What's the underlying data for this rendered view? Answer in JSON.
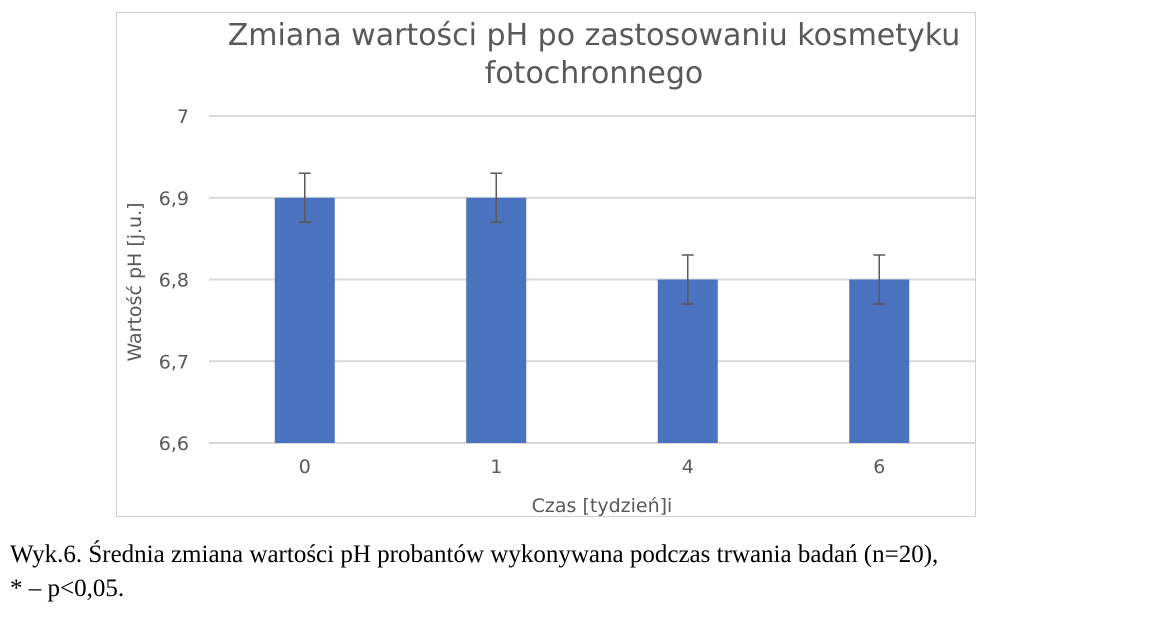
{
  "chart_data": {
    "type": "bar",
    "title_lines": [
      "Zmiana wartości pH po zastosowaniu kosmetyku",
      "fotochronnego"
    ],
    "xlabel": "Czas [tydzień]i",
    "ylabel": "Wartość pH [j.u.]",
    "categories": [
      "0",
      "1",
      "4",
      "6"
    ],
    "values": [
      6.9,
      6.9,
      6.8,
      6.8
    ],
    "error": [
      0.03,
      0.03,
      0.03,
      0.03
    ],
    "ylim": [
      6.6,
      7.0
    ],
    "yticks": [
      6.6,
      6.7,
      6.8,
      6.9,
      7.0
    ],
    "ytick_labels": [
      "6,6",
      "6,7",
      "6,8",
      "6,9",
      "7"
    ],
    "grid": true,
    "colors": {
      "bar": "#4A72BF",
      "grid": "#d9d9d9",
      "errorbar": "#595959",
      "text": "#595959"
    }
  },
  "caption": {
    "line1": "Wyk.6. Średnia zmiana wartości pH probantów wykonywana podczas trwania badań (n=20),",
    "line2": "* – p<0,05."
  }
}
